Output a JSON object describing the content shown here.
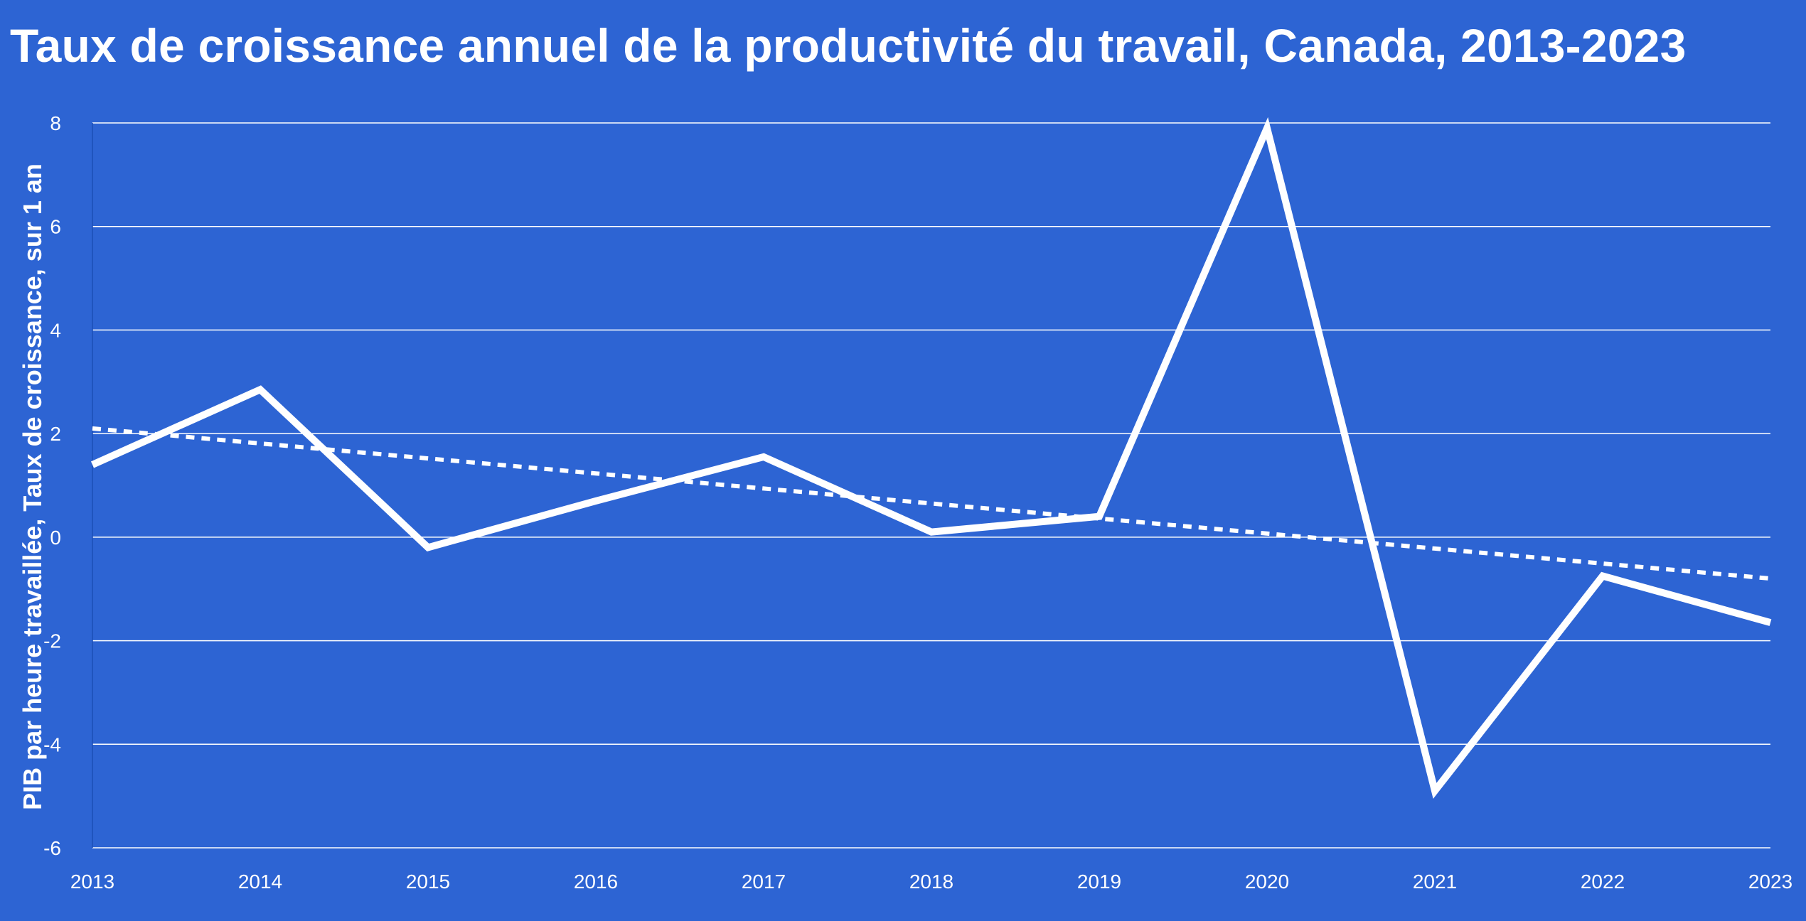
{
  "chart_data": {
    "type": "line",
    "title": "Taux de croissance annuel de la productivité du travail, Canada, 2013-2023",
    "xlabel": "",
    "ylabel": "PIB par heure travaillée, Taux de croissance, sur 1 an",
    "x": [
      "2013",
      "2014",
      "2015",
      "2016",
      "2017",
      "2018",
      "2019",
      "2020",
      "2021",
      "2022",
      "2023"
    ],
    "yticks": [
      "-6",
      "-4",
      "-2",
      "0",
      "2",
      "4",
      "6",
      "8"
    ],
    "ylim": [
      -6,
      8
    ],
    "grid": true,
    "series": [
      {
        "values": [
          1.4,
          2.85,
          -0.2,
          0.7,
          1.55,
          0.1,
          0.4,
          7.9,
          -4.9,
          -0.75,
          -1.65
        ],
        "style": "solid"
      },
      {
        "values": [
          2.1,
          1.81,
          1.52,
          1.23,
          0.94,
          0.65,
          0.36,
          0.07,
          -0.22,
          -0.51,
          -0.8
        ],
        "style": "dotted"
      }
    ],
    "colors": {
      "background": "#2d64d3",
      "line": "#ffffff",
      "grid": "#ffffff"
    }
  }
}
